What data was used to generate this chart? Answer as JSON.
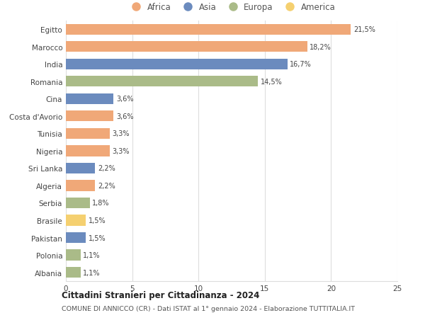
{
  "countries": [
    "Egitto",
    "Marocco",
    "India",
    "Romania",
    "Cina",
    "Costa d'Avorio",
    "Tunisia",
    "Nigeria",
    "Sri Lanka",
    "Algeria",
    "Serbia",
    "Brasile",
    "Pakistan",
    "Polonia",
    "Albania"
  ],
  "values": [
    21.5,
    18.2,
    16.7,
    14.5,
    3.6,
    3.6,
    3.3,
    3.3,
    2.2,
    2.2,
    1.8,
    1.5,
    1.5,
    1.1,
    1.1
  ],
  "labels": [
    "21,5%",
    "18,2%",
    "16,7%",
    "14,5%",
    "3,6%",
    "3,6%",
    "3,3%",
    "3,3%",
    "2,2%",
    "2,2%",
    "1,8%",
    "1,5%",
    "1,5%",
    "1,1%",
    "1,1%"
  ],
  "continents": [
    "Africa",
    "Africa",
    "Asia",
    "Europa",
    "Asia",
    "Africa",
    "Africa",
    "Africa",
    "Asia",
    "Africa",
    "Europa",
    "America",
    "Asia",
    "Europa",
    "Europa"
  ],
  "continent_colors": {
    "Africa": "#F0A878",
    "Asia": "#6B8BBE",
    "Europa": "#AABB88",
    "America": "#F5D070"
  },
  "legend_order": [
    "Africa",
    "Asia",
    "Europa",
    "America"
  ],
  "title1": "Cittadini Stranieri per Cittadinanza - 2024",
  "title2": "COMUNE DI ANNICCO (CR) - Dati ISTAT al 1° gennaio 2024 - Elaborazione TUTTITALIA.IT",
  "xlim": [
    0,
    25
  ],
  "xticks": [
    0,
    5,
    10,
    15,
    20,
    25
  ],
  "background_color": "#ffffff",
  "grid_color": "#dddddd"
}
